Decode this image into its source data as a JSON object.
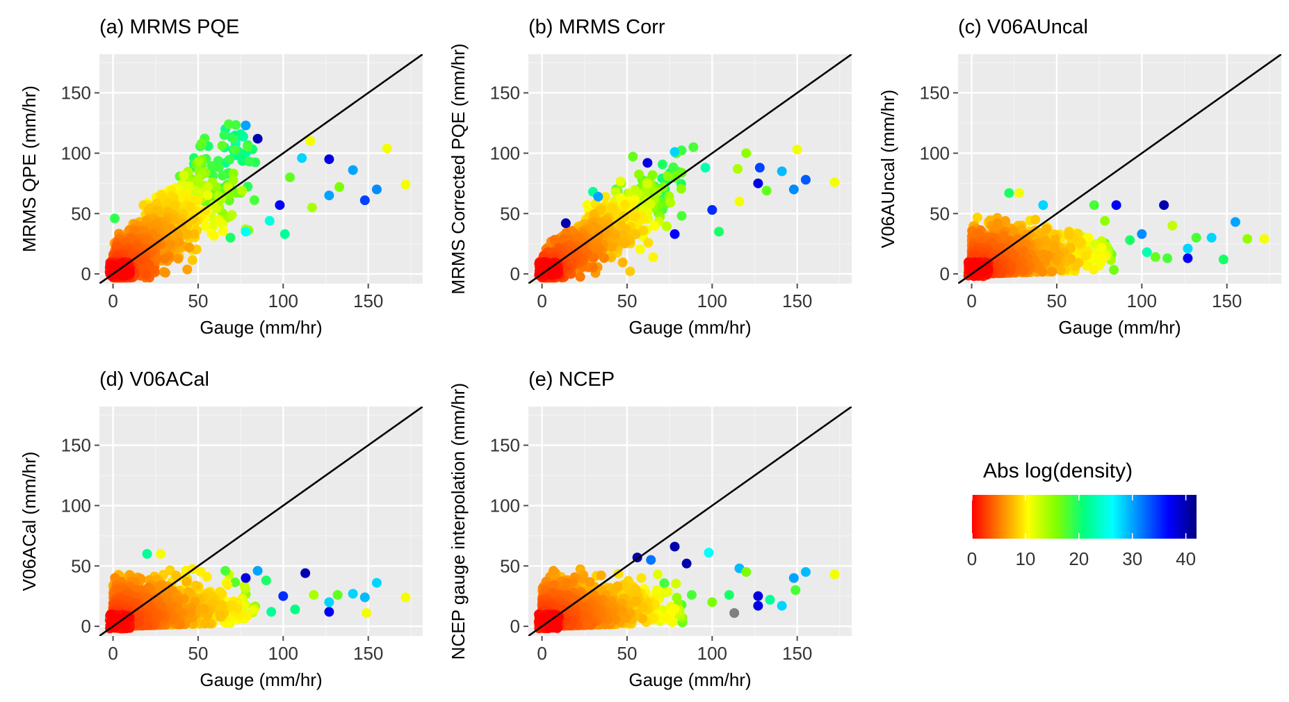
{
  "chart_data": [
    {
      "type": "scatter",
      "id": "a",
      "title": "(a) MRMS PQE",
      "xlabel": "Gauge (mm/hr)",
      "ylabel": "MRMS QPE (mm/hr)",
      "xlim": [
        -8,
        182
      ],
      "ylim": [
        -8,
        182
      ],
      "x_ticks": [
        0,
        50,
        100,
        150
      ],
      "y_ticks": [
        0,
        50,
        100,
        150
      ],
      "one_to_one_line": true,
      "pattern": {
        "spread_type": "overestimate_cloud",
        "max_y": 124
      },
      "outliers": [
        {
          "x": 85,
          "y": 112,
          "c": 40
        },
        {
          "x": 78,
          "y": 123,
          "c": 30
        },
        {
          "x": 68,
          "y": 124,
          "c": 18
        },
        {
          "x": 52,
          "y": 108,
          "c": 17
        },
        {
          "x": 127,
          "y": 95,
          "c": 38
        },
        {
          "x": 98,
          "y": 57,
          "c": 37
        },
        {
          "x": 148,
          "y": 61,
          "c": 34
        },
        {
          "x": 155,
          "y": 70,
          "c": 31
        },
        {
          "x": 141,
          "y": 86,
          "c": 30
        },
        {
          "x": 127,
          "y": 65,
          "c": 30
        },
        {
          "x": 111,
          "y": 96,
          "c": 28
        },
        {
          "x": 101,
          "y": 33,
          "c": 22
        },
        {
          "x": 92,
          "y": 44,
          "c": 25
        },
        {
          "x": 78,
          "y": 35,
          "c": 26
        },
        {
          "x": 172,
          "y": 74,
          "c": 11
        },
        {
          "x": 161,
          "y": 104,
          "c": 11
        },
        {
          "x": 116,
          "y": 110,
          "c": 11
        },
        {
          "x": 133,
          "y": 72,
          "c": 16
        },
        {
          "x": 117,
          "y": 55,
          "c": 14
        },
        {
          "x": 1,
          "y": 46,
          "c": 19
        },
        {
          "x": 104,
          "y": 80,
          "c": 17
        },
        {
          "x": 69,
          "y": 30,
          "c": 20
        }
      ]
    },
    {
      "type": "scatter",
      "id": "b",
      "title": "(b) MRMS Corr",
      "xlabel": "Gauge (mm/hr)",
      "ylabel": "MRMS Corrected PQE (mm/hr)",
      "xlim": [
        -8,
        182
      ],
      "ylim": [
        -8,
        182
      ],
      "x_ticks": [
        0,
        50,
        100,
        150
      ],
      "y_ticks": [
        0,
        50,
        100,
        150
      ],
      "one_to_one_line": true,
      "pattern": {
        "spread_type": "near_line_cloud",
        "max_y": 105
      },
      "outliers": [
        {
          "x": 14,
          "y": 42,
          "c": 40
        },
        {
          "x": 62,
          "y": 92,
          "c": 38
        },
        {
          "x": 78,
          "y": 33,
          "c": 37
        },
        {
          "x": 127,
          "y": 75,
          "c": 38
        },
        {
          "x": 128,
          "y": 88,
          "c": 34
        },
        {
          "x": 155,
          "y": 78,
          "c": 33
        },
        {
          "x": 148,
          "y": 70,
          "c": 31
        },
        {
          "x": 141,
          "y": 85,
          "c": 29
        },
        {
          "x": 100,
          "y": 53,
          "c": 35
        },
        {
          "x": 78,
          "y": 101,
          "c": 28
        },
        {
          "x": 89,
          "y": 105,
          "c": 18
        },
        {
          "x": 104,
          "y": 35,
          "c": 20
        },
        {
          "x": 172,
          "y": 76,
          "c": 11
        },
        {
          "x": 150,
          "y": 103,
          "c": 11
        },
        {
          "x": 116,
          "y": 60,
          "c": 11
        },
        {
          "x": 132,
          "y": 69,
          "c": 17
        },
        {
          "x": 30,
          "y": 68,
          "c": 22
        },
        {
          "x": 115,
          "y": 87,
          "c": 14
        },
        {
          "x": 120,
          "y": 100,
          "c": 15
        },
        {
          "x": 96,
          "y": 88,
          "c": 23
        },
        {
          "x": 33,
          "y": 64,
          "c": 30
        }
      ]
    },
    {
      "type": "scatter",
      "id": "c",
      "title": "(c) V06AUncal",
      "xlabel": "Gauge (mm/hr)",
      "ylabel": "V06AUncal (mm/hr)",
      "xlim": [
        -8,
        182
      ],
      "ylim": [
        -8,
        182
      ],
      "x_ticks": [
        0,
        50,
        100,
        150
      ],
      "y_ticks": [
        0,
        50,
        100,
        150
      ],
      "one_to_one_line": true,
      "pattern": {
        "spread_type": "flat_band",
        "max_y": 67
      },
      "outliers": [
        {
          "x": 113,
          "y": 57,
          "c": 40
        },
        {
          "x": 85,
          "y": 57,
          "c": 37
        },
        {
          "x": 127,
          "y": 13,
          "c": 37
        },
        {
          "x": 155,
          "y": 43,
          "c": 30
        },
        {
          "x": 141,
          "y": 30,
          "c": 28
        },
        {
          "x": 127,
          "y": 21,
          "c": 28
        },
        {
          "x": 100,
          "y": 33,
          "c": 31
        },
        {
          "x": 148,
          "y": 12,
          "c": 20
        },
        {
          "x": 132,
          "y": 30,
          "c": 18
        },
        {
          "x": 172,
          "y": 29,
          "c": 11
        },
        {
          "x": 162,
          "y": 29,
          "c": 15
        },
        {
          "x": 22,
          "y": 67,
          "c": 20
        },
        {
          "x": 28,
          "y": 67,
          "c": 11
        },
        {
          "x": 42,
          "y": 57,
          "c": 28
        },
        {
          "x": 72,
          "y": 57,
          "c": 18
        },
        {
          "x": 115,
          "y": 13,
          "c": 18
        },
        {
          "x": 108,
          "y": 14,
          "c": 17
        },
        {
          "x": 118,
          "y": 40,
          "c": 13
        },
        {
          "x": 93,
          "y": 28,
          "c": 20
        },
        {
          "x": 103,
          "y": 18,
          "c": 23
        }
      ]
    },
    {
      "type": "scatter",
      "id": "d",
      "title": "(d) V06ACal",
      "xlabel": "Gauge (mm/hr)",
      "ylabel": "V06ACal (mm/hr)",
      "xlim": [
        -8,
        182
      ],
      "ylim": [
        -8,
        182
      ],
      "x_ticks": [
        0,
        50,
        100,
        150
      ],
      "y_ticks": [
        0,
        50,
        100,
        150
      ],
      "one_to_one_line": true,
      "pattern": {
        "spread_type": "flat_band",
        "max_y": 60
      },
      "outliers": [
        {
          "x": 113,
          "y": 44,
          "c": 40
        },
        {
          "x": 78,
          "y": 40,
          "c": 38
        },
        {
          "x": 127,
          "y": 12,
          "c": 37
        },
        {
          "x": 100,
          "y": 25,
          "c": 35
        },
        {
          "x": 85,
          "y": 46,
          "c": 30
        },
        {
          "x": 141,
          "y": 27,
          "c": 28
        },
        {
          "x": 148,
          "y": 24,
          "c": 29
        },
        {
          "x": 155,
          "y": 36,
          "c": 28
        },
        {
          "x": 127,
          "y": 20,
          "c": 28
        },
        {
          "x": 20,
          "y": 60,
          "c": 22
        },
        {
          "x": 28,
          "y": 60,
          "c": 11
        },
        {
          "x": 172,
          "y": 24,
          "c": 11
        },
        {
          "x": 149,
          "y": 11,
          "c": 11
        },
        {
          "x": 66,
          "y": 46,
          "c": 18
        },
        {
          "x": 90,
          "y": 38,
          "c": 20
        },
        {
          "x": 107,
          "y": 14,
          "c": 21
        },
        {
          "x": 118,
          "y": 26,
          "c": 14
        },
        {
          "x": 132,
          "y": 26,
          "c": 17
        },
        {
          "x": 93,
          "y": 12,
          "c": 22
        }
      ]
    },
    {
      "type": "scatter",
      "id": "e",
      "title": "(e) NCEP",
      "xlabel": "Gauge (mm/hr)",
      "ylabel": "NCEP gauge interpolation (mm/hr)",
      "xlim": [
        -8,
        182
      ],
      "ylim": [
        -8,
        182
      ],
      "x_ticks": [
        0,
        50,
        100,
        150
      ],
      "y_ticks": [
        0,
        50,
        100,
        150
      ],
      "one_to_one_line": true,
      "pattern": {
        "spread_type": "flat_band",
        "max_y": 66
      },
      "outliers": [
        {
          "x": 78,
          "y": 66,
          "c": 40
        },
        {
          "x": 56,
          "y": 57,
          "c": 40
        },
        {
          "x": 85,
          "y": 52,
          "c": 40
        },
        {
          "x": 127,
          "y": 17,
          "c": 38
        },
        {
          "x": 127,
          "y": 25,
          "c": 38
        },
        {
          "x": 64,
          "y": 55,
          "c": 32
        },
        {
          "x": 113,
          "y": 11,
          "c": null
        },
        {
          "x": 98,
          "y": 61,
          "c": 26
        },
        {
          "x": 116,
          "y": 48,
          "c": 29
        },
        {
          "x": 155,
          "y": 45,
          "c": 29
        },
        {
          "x": 148,
          "y": 40,
          "c": 30
        },
        {
          "x": 141,
          "y": 17,
          "c": 28
        },
        {
          "x": 134,
          "y": 22,
          "c": 22
        },
        {
          "x": 149,
          "y": 30,
          "c": 18
        },
        {
          "x": 172,
          "y": 43,
          "c": 11
        },
        {
          "x": 120,
          "y": 45,
          "c": 16
        },
        {
          "x": 110,
          "y": 26,
          "c": 20
        },
        {
          "x": 88,
          "y": 26,
          "c": 18
        },
        {
          "x": 100,
          "y": 20,
          "c": 16
        }
      ]
    }
  ],
  "legend": {
    "title": "Abs log(density)",
    "ticks": [
      0,
      10,
      20,
      30,
      40
    ],
    "range": [
      0,
      42
    ],
    "na_color": "#808080",
    "colors": [
      "#ff0000",
      "#ff8000",
      "#ffff00",
      "#80ff00",
      "#00ff80",
      "#00ffff",
      "#0080ff",
      "#0000ff",
      "#000080"
    ]
  },
  "style": {
    "panel_bg": "#ebebeb",
    "grid_major": "#ffffff",
    "grid_minor": "#f4f4f4",
    "line_color": "#000000",
    "tick_color": "#4d4d4d"
  }
}
